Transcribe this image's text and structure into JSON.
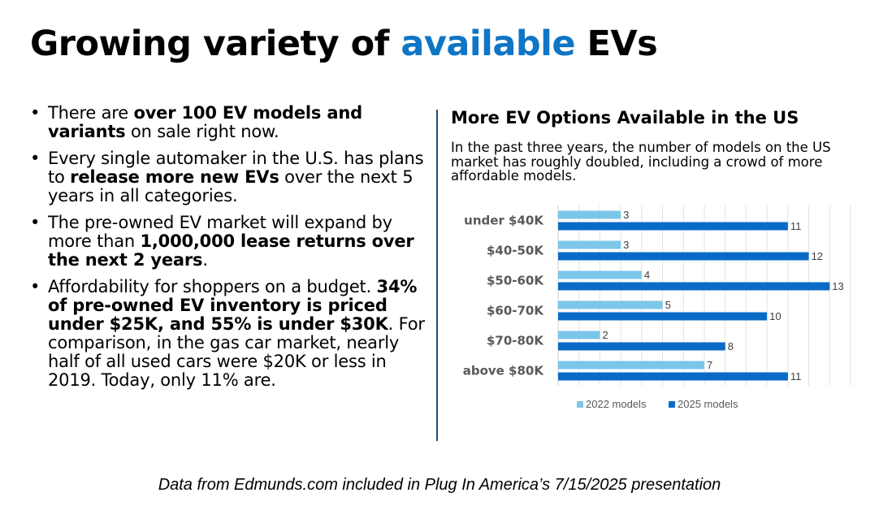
{
  "slide": {
    "title_before": "Growing variety of ",
    "title_accent": "available",
    "title_after": " EVs",
    "accent_color": "#0f75c5"
  },
  "bullets": [
    {
      "segments": [
        {
          "text": "There are ",
          "bold": false
        },
        {
          "text": "over 100 EV models and variants",
          "bold": true
        },
        {
          "text": " on sale right now.",
          "bold": false
        }
      ]
    },
    {
      "segments": [
        {
          "text": "Every single automaker in the U.S. has plans to ",
          "bold": false
        },
        {
          "text": "release more new EVs",
          "bold": true
        },
        {
          "text": " over the next 5 years in all categories.",
          "bold": false
        }
      ]
    },
    {
      "segments": [
        {
          "text": "The pre-owned EV market will expand by more than ",
          "bold": false
        },
        {
          "text": "1,000,000 lease returns over the next 2 years",
          "bold": true
        },
        {
          "text": ".",
          "bold": false
        }
      ]
    },
    {
      "segments": [
        {
          "text": "Affordability for shoppers on a budget. ",
          "bold": false
        },
        {
          "text": "34% of pre-owned EV inventory is priced under $25K, and 55% is under $30K",
          "bold": true
        },
        {
          "text": ".  For comparison, in the gas car market, nearly half of all used cars were $20K or less in 2019.  Today, only 11% are.",
          "bold": false
        }
      ]
    }
  ],
  "bullet_glyph": "•",
  "footer": "Data from Edmunds.com included in Plug In America’s 7/15/2025 presentation",
  "chart_data": {
    "type": "bar",
    "orientation": "horizontal",
    "title": "More EV Options Available in the US",
    "subtitle": "In the past three years, the number of models on the US market has roughly doubled, including a crowd of more affordable models.",
    "categories": [
      "under $40K",
      "$40-50K",
      "$50-60K",
      "$60-70K",
      "$70-80K",
      "above $80K"
    ],
    "series": [
      {
        "name": "2022 models",
        "color": "#7cc6ea",
        "values": [
          3,
          3,
          4,
          5,
          2,
          7
        ]
      },
      {
        "name": "2025 models",
        "color": "#0a6bc7",
        "values": [
          11,
          12,
          13,
          10,
          8,
          11
        ]
      }
    ],
    "xlim": [
      0,
      14
    ],
    "grid": "vertical",
    "legend": "bottom",
    "data_labels": true
  }
}
